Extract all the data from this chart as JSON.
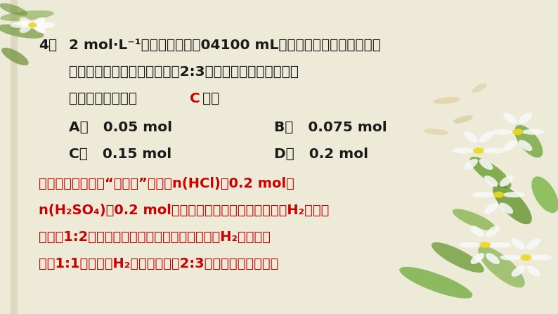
{
  "bg_color": "#edebd8",
  "text_color_black": "#1a1a1a",
  "text_color_red": "#cc0000",
  "fig_width": 7.94,
  "fig_height": 4.47,
  "dpi": 100,
  "q_line1_num": "4．",
  "q_line1": "2 mol·L⁻¹的盐酸和硫酸各04100 mL，分别加入等质量的铁粉，",
  "q_line2": "反应后生成的气体质量之比为2:3，则向盐酸中加入的铁粉",
  "q_line3a": "的物质的量为（　",
  "q_line3c": "C",
  "q_line3b": "　）",
  "opt_A": "A．   0.05 mol",
  "opt_B": "B．   0.075 mol",
  "opt_C": "C．   0.15 mol",
  "opt_D": "D．   0.2 mol",
  "an_line1": "【解析】本题采用“极値法”讨论。n(HCl)＝0.2 mol，",
  "an_line2": "n(H₂SO₄)＝0.2 mol。若酸均不足，即完全反应生成H₂的质量",
  "an_line3": "之比为1:2；若酸均过量，即金属不足，则生成H₂的质量之",
  "an_line4": "比为1:1。现生成H₂的质量之比为2:3，则说明盐酸不足，"
}
